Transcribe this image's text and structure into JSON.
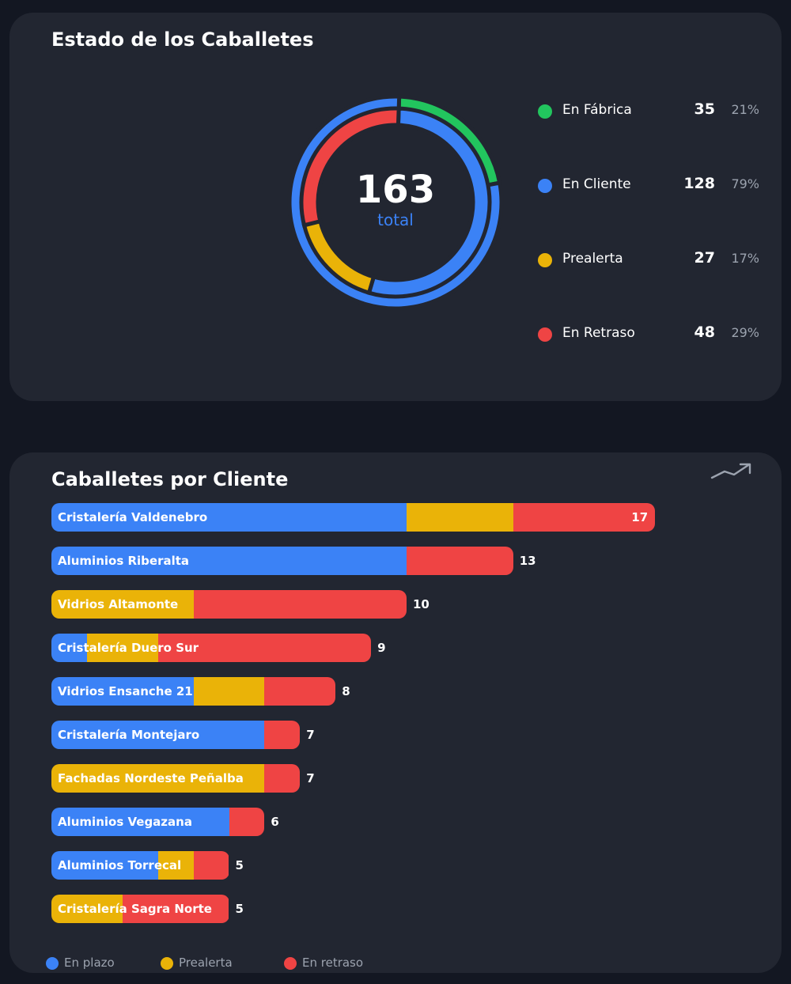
{
  "status": {
    "title": "Estado de los Caballetes",
    "total_value": "163",
    "total_label": "total",
    "legend": [
      {
        "label": "En Fábrica",
        "count": "35",
        "pct": "21%",
        "color": "#22c55e"
      },
      {
        "label": "En Cliente",
        "count": "128",
        "pct": "79%",
        "color": "#3b82f6"
      },
      {
        "label": "Prealerta",
        "count": "27",
        "pct": "17%",
        "color": "#eab308"
      },
      {
        "label": "En Retraso",
        "count": "48",
        "pct": "29%",
        "color": "#ef4444"
      }
    ]
  },
  "clients": {
    "title": "Caballetes por Cliente",
    "trend_icon": "trending-up-icon",
    "legend": [
      {
        "label": "En plazo",
        "color": "#3b82f6"
      },
      {
        "label": "Prealerta",
        "color": "#eab308"
      },
      {
        "label": "En retraso",
        "color": "#ef4444"
      }
    ]
  },
  "chart_data": [
    {
      "type": "pie",
      "variant": "donut",
      "outer_ring": {
        "categories": [
          "En Fábrica",
          "En Cliente"
        ],
        "values": [
          35,
          128
        ]
      },
      "inner_ring": {
        "categories": [
          "En plazo",
          "Prealerta",
          "En Retraso"
        ],
        "values": [
          88,
          27,
          48
        ]
      },
      "colors": {
        "En Fábrica": "#22c55e",
        "En Cliente": "#3b82f6",
        "En plazo": "#3b82f6",
        "Prealerta": "#eab308",
        "En Retraso": "#ef4444"
      },
      "legend_position": "right"
    },
    {
      "type": "bar",
      "orientation": "horizontal",
      "stacked": true,
      "categories": [
        "Cristalería Valdenebro",
        "Aluminios Riberalta",
        "Vidrios Altamonte",
        "Cristalería Duero Sur",
        "Vidrios Ensanche 21",
        "Cristalería Montejaro",
        "Fachadas Nordeste Peñalba",
        "Aluminios Vegazana",
        "Aluminios Torrecal",
        "Cristalería Sagra Norte"
      ],
      "series": [
        {
          "name": "En plazo",
          "color": "#3b82f6",
          "values": [
            10,
            10,
            0,
            1,
            4,
            6,
            0,
            5,
            3,
            0
          ]
        },
        {
          "name": "Prealerta",
          "color": "#eab308",
          "values": [
            3,
            0,
            4,
            2,
            2,
            0,
            6,
            0,
            1,
            2
          ]
        },
        {
          "name": "En retraso",
          "color": "#ef4444",
          "values": [
            4,
            3,
            6,
            6,
            2,
            1,
            1,
            1,
            1,
            3
          ]
        }
      ],
      "totals": [
        17,
        13,
        10,
        9,
        8,
        7,
        7,
        6,
        5,
        5
      ],
      "legend_position": "bottom-left"
    }
  ]
}
